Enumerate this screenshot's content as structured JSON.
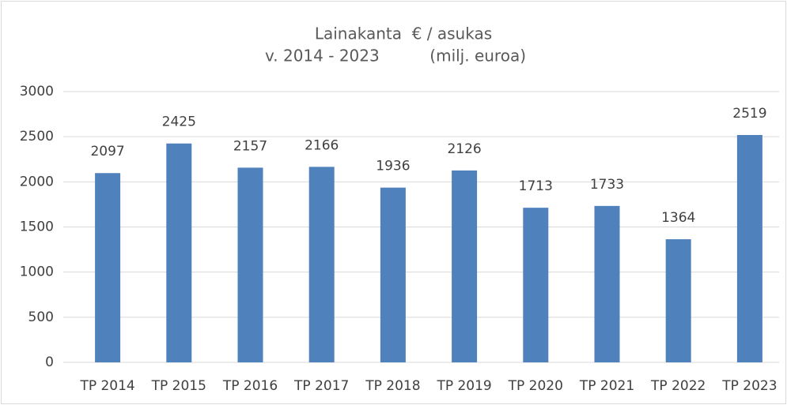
{
  "chart_data": {
    "type": "bar",
    "title": "Lainakanta  € / asukas",
    "subtitle": "v. 2014 - 2023          (milj. euroa)",
    "categories": [
      "TP 2014",
      "TP 2015",
      "TP 2016",
      "TP 2017",
      "TP 2018",
      "TP 2019",
      "TP 2020",
      "TP 2021",
      "TP 2022",
      "TP 2023"
    ],
    "values": [
      2097,
      2425,
      2157,
      2166,
      1936,
      2126,
      1713,
      1733,
      1364,
      2519
    ],
    "color": "#4f81bd",
    "ylim": [
      0,
      3000
    ],
    "yticks": [
      0,
      500,
      1000,
      1500,
      2000,
      2500,
      3000
    ],
    "grid": true
  }
}
